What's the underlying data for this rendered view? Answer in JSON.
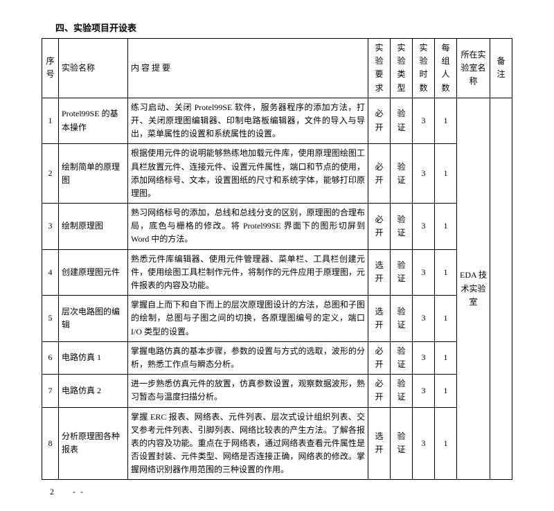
{
  "title": "四、实验项目开设表",
  "headers": {
    "idx": "序号",
    "name": "实验名称",
    "desc": "内 容 提 要",
    "req": "实验要求",
    "type": "实验类型",
    "hours": "实验时数",
    "group": "每组人数",
    "lab": "所在实验室名称",
    "note": "备注"
  },
  "lab_name": "EDA 技术实验室",
  "rows": [
    {
      "idx": "1",
      "name": "Protel99SE 的基本操作",
      "desc": "练习启动、关闭 Protel99SE 软件，服务器程序的添加方法，打开、关闭原理图编辑器、印制电路板编辑器，文件的导入与导出，菜单属性的设置和系统属性的设置。",
      "req": "必开",
      "type": "验证",
      "hours": "3",
      "group": "1"
    },
    {
      "idx": "2",
      "name": "绘制简单的原理图",
      "desc": "根据使用元件的说明能够熟练地加载元件库，使用原理图绘图工具栏放置元件、连接元件、设置元件属性，端口和节点的使用，添加网络标号、文本，设置图纸的尺寸和系统字体，能够打印原理图。",
      "req": "必开",
      "type": "验证",
      "hours": "3",
      "group": "1"
    },
    {
      "idx": "3",
      "name": "绘制原理图",
      "desc": "熟习网络标号的添加，总线和总线分支的区别，原理图的合理布局，底色与栅格的修改。将 Protel99SE 界面下的图形切屏到 Word 中的方法。",
      "req": "必开",
      "type": "验证",
      "hours": "3",
      "group": "1"
    },
    {
      "idx": "4",
      "name": "创建原理图元件",
      "desc": "熟悉元件库编辑器、使用元件管理器、菜单栏、工具栏创建元件，使用绘图工具栏制作元件，将制作的元件应用于原理图，元件报表的内容及功能。",
      "req": "选开",
      "type": "验证",
      "hours": "3",
      "group": "1"
    },
    {
      "idx": "5",
      "name": "层次电路图的编辑",
      "desc": "掌握自上而下和自下而上的层次原理图设计的方法，总图和子图的绘制，总图与子图之间的切换，各原理图编号的定义，端口 I/O 类型的设置。",
      "req": "选开",
      "type": "验证",
      "hours": "3",
      "group": "1"
    },
    {
      "idx": "6",
      "name": "电路仿真 1",
      "desc": "掌握电路仿真的基本步骤，参数的设置与方式的选取，波形的分析，熟悉工作点与瞬态分析。",
      "req": "必开",
      "type": "验证",
      "hours": "3",
      "group": "1"
    },
    {
      "idx": "7",
      "name": "电路仿真 2",
      "desc": "进一步熟悉仿真元件的放置，仿真参数设置，观察数据波形，熟习暂态与温度扫描分析。",
      "req": "必开",
      "type": "验证",
      "hours": "3",
      "group": "1"
    },
    {
      "idx": "8",
      "name": "分析原理图各种报表",
      "desc": "掌握 ERC 报表、网络表、元件列表、层次式设计组织列表、交叉参考元件列表、引脚列表、网络比较表的产生方法。了解各报表的内容及功能。重点在于网络表，通过网络表查看元件属性是否设置封装、元件类型、网络是否连接正确，网络表的修改。掌握网络识别器作用范围的三种设置的作用。",
      "req": "选开",
      "type": "验证",
      "hours": "3",
      "group": "1"
    }
  ],
  "footer": {
    "page": "2",
    "marker": "- -"
  }
}
